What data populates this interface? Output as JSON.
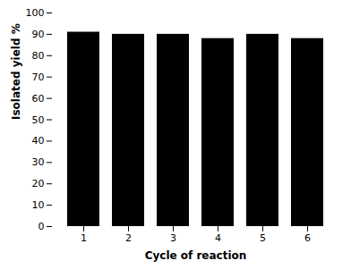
{
  "chart_data": {
    "type": "bar",
    "xlabel": "Cycle of reaction",
    "ylabel": "Isolated yield %",
    "categories": [
      1,
      2,
      3,
      4,
      5,
      6
    ],
    "values": [
      91,
      90,
      90,
      88,
      90,
      88
    ],
    "color": "#000000",
    "ylim": [
      0,
      100
    ],
    "yticks": [
      0,
      10,
      20,
      30,
      40,
      50,
      60,
      70,
      80,
      90,
      100
    ],
    "grid": false
  }
}
